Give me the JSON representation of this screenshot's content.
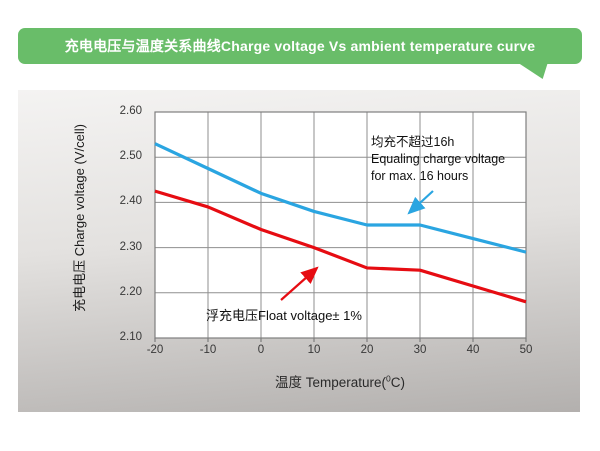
{
  "banner": {
    "title": "充电电压与温度关系曲线Charge voltage Vs ambient temperature curve",
    "bg_color": "#69bd69",
    "text_color": "#ffffff"
  },
  "chart_data": {
    "type": "line",
    "title": "充电电压与温度关系曲线Charge voltage Vs ambient temperature curve",
    "xlabel": "温度 Temperature(°C)",
    "xlabel_parts": {
      "prefix": "温度 Temperature(",
      "sup": "0",
      "suffix": "C)"
    },
    "ylabel": "充电电压 Charge voltage (V/cell)",
    "xlim": [
      -20,
      50
    ],
    "ylim": [
      2.1,
      2.6
    ],
    "xticks": [
      -20,
      -10,
      0,
      10,
      20,
      30,
      40,
      50
    ],
    "xtick_labels": [
      "-20",
      "-10",
      "0",
      "10",
      "20",
      "30",
      "40",
      "50"
    ],
    "yticks": [
      2.1,
      2.2,
      2.3,
      2.4,
      2.5,
      2.6
    ],
    "ytick_labels": [
      "2.10",
      "2.20",
      "2.30",
      "2.40",
      "2.50",
      "2.60"
    ],
    "grid": true,
    "legend_position": "none",
    "x": [
      -20,
      -10,
      0,
      10,
      20,
      30,
      40,
      50
    ],
    "series": [
      {
        "name": "equalizing-charge-voltage",
        "color": "#2aa5e1",
        "values": [
          2.53,
          2.475,
          2.42,
          2.38,
          2.35,
          2.35,
          2.32,
          2.29
        ]
      },
      {
        "name": "float-voltage",
        "color": "#e60c12",
        "values": [
          2.425,
          2.39,
          2.34,
          2.3,
          2.255,
          2.25,
          2.215,
          2.18
        ]
      }
    ],
    "annotations": [
      {
        "id": "equalize",
        "lines": [
          "均充不超过16h",
          "Equaling charge voltage",
          "for max. 16 hours"
        ],
        "arrow_color": "#2aa5e1"
      },
      {
        "id": "float",
        "lines": [
          "浮充电压Float voltage± 1%"
        ],
        "arrow_color": "#e60c12"
      }
    ],
    "plot_border_color": "#7e7e7e",
    "grid_color": "#8f8f8f"
  }
}
